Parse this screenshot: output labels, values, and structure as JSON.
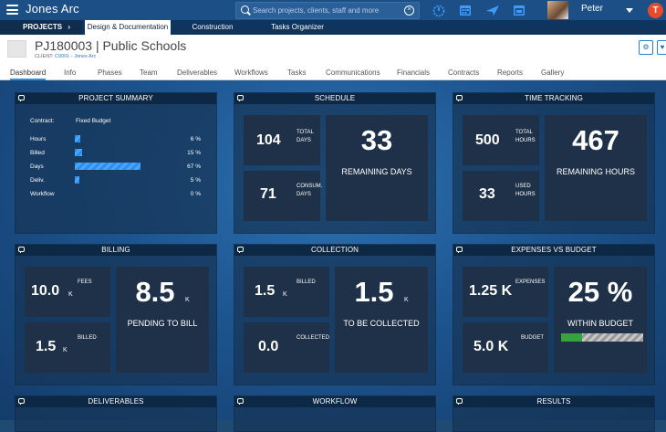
{
  "app": {
    "title": "Jones Arc"
  },
  "search": {
    "placeholder": "Search projects, clients, staff and more"
  },
  "user": {
    "name": "Peter"
  },
  "nav": {
    "projects_label": "PROJECTS",
    "tabs": [
      "Design & Documentation",
      "Construction",
      "Tasks Organizer"
    ]
  },
  "project": {
    "title": "PJ180003 | Public Schools",
    "client_label": "CLIENT:",
    "client_value": "C0001 - Jones Arc"
  },
  "tabs": [
    "Dashboard",
    "Info",
    "Phases",
    "Team",
    "Deliverables",
    "Workflows",
    "Tasks",
    "Communications",
    "Financials",
    "Contracts",
    "Reports",
    "Gallery"
  ],
  "summary": {
    "title": "PROJECT SUMMARY",
    "contract_label": "Contract:",
    "contract_value": "Fixed Budget",
    "rows": [
      {
        "label": "Hours",
        "pct": "6 %",
        "value": 6
      },
      {
        "label": "Billed",
        "pct": "15 %",
        "value": 15
      },
      {
        "label": "Days",
        "pct": "67 %",
        "value": 67
      },
      {
        "label": "Deliv.",
        "pct": "5 %",
        "value": 5
      },
      {
        "label": "Workflow",
        "pct": "0 %",
        "value": 0
      }
    ]
  },
  "schedule": {
    "title": "SCHEDULE",
    "total_value": "104",
    "total_label": "TOTAL DAYS",
    "consum_value": "71",
    "consum_label": "CONSUM. DAYS",
    "remaining_value": "33",
    "remaining_label": "REMAINING DAYS"
  },
  "time": {
    "title": "TIME TRACKING",
    "total_value": "500",
    "total_label": "TOTAL HOURS",
    "used_value": "33",
    "used_label": "USED HOURS",
    "remaining_value": "467",
    "remaining_label": "REMAINING HOURS"
  },
  "billing": {
    "title": "BILLING",
    "fees_value": "10.0",
    "fees_unit": "K",
    "fees_label": "FEES",
    "billed_value": "1.5",
    "billed_unit": "K",
    "billed_label": "BILLED",
    "pending_value": "8.5",
    "pending_unit": "K",
    "pending_label": "PENDING TO BILL"
  },
  "collection": {
    "title": "COLLECTION",
    "billed_value": "1.5",
    "billed_unit": "K",
    "billed_label": "BILLED",
    "collected_value": "0.0",
    "collected_label": "COLLECTED",
    "tbc_value": "1.5",
    "tbc_unit": "K",
    "tbc_label": "TO BE COLLECTED"
  },
  "expenses": {
    "title": "EXPENSES VS BUDGET",
    "expenses_value": "1.25 K",
    "expenses_label": "EXPENSES",
    "budget_value": "5.0 K",
    "budget_label": "BUDGET",
    "pct_value": "25 %",
    "pct_label": "WITHIN BUDGET",
    "gauge_fraction": 0.25
  },
  "bottom": {
    "deliverables": "DELIVERABLES",
    "workflow": "WORKFLOW",
    "results": "RESULTS"
  },
  "colors": {
    "topbar": "#1b4f86",
    "accent": "#2f8fe0",
    "gauge_fill": "#37a43a"
  }
}
